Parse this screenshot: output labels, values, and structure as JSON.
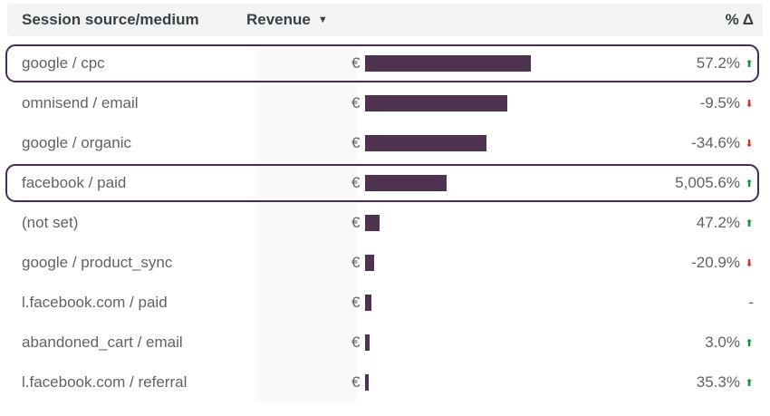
{
  "header": {
    "source_label": "Session source/medium",
    "revenue_label": "Revenue",
    "sort_icon": "▼",
    "delta_label": "% Δ"
  },
  "currency_symbol": "€",
  "colors": {
    "bar": "#4f3150",
    "highlight_border": "#4a2a5e",
    "up": "#1e8e3e",
    "down": "#d93025"
  },
  "rows": [
    {
      "source": "google / cpc",
      "revenue_fraction": 1.0,
      "delta": "57.2%",
      "trend": "up",
      "highlighted": true
    },
    {
      "source": "omnisend / email",
      "revenue_fraction": 0.86,
      "delta": "-9.5%",
      "trend": "down",
      "highlighted": false
    },
    {
      "source": "google / organic",
      "revenue_fraction": 0.73,
      "delta": "-34.6%",
      "trend": "down",
      "highlighted": false
    },
    {
      "source": "facebook / paid",
      "revenue_fraction": 0.49,
      "delta": "5,005.6%",
      "trend": "up",
      "highlighted": true
    },
    {
      "source": "(not set)",
      "revenue_fraction": 0.087,
      "delta": "47.2%",
      "trend": "up",
      "highlighted": false
    },
    {
      "source": "google / product_sync",
      "revenue_fraction": 0.055,
      "delta": "-20.9%",
      "trend": "down",
      "highlighted": false
    },
    {
      "source": "l.facebook.com / paid",
      "revenue_fraction": 0.038,
      "delta": "-",
      "trend": "none",
      "highlighted": false
    },
    {
      "source": "abandoned_cart / email",
      "revenue_fraction": 0.027,
      "delta": "3.0%",
      "trend": "up",
      "highlighted": false
    },
    {
      "source": "l.facebook.com / referral",
      "revenue_fraction": 0.022,
      "delta": "35.3%",
      "trend": "up",
      "highlighted": false
    }
  ]
}
